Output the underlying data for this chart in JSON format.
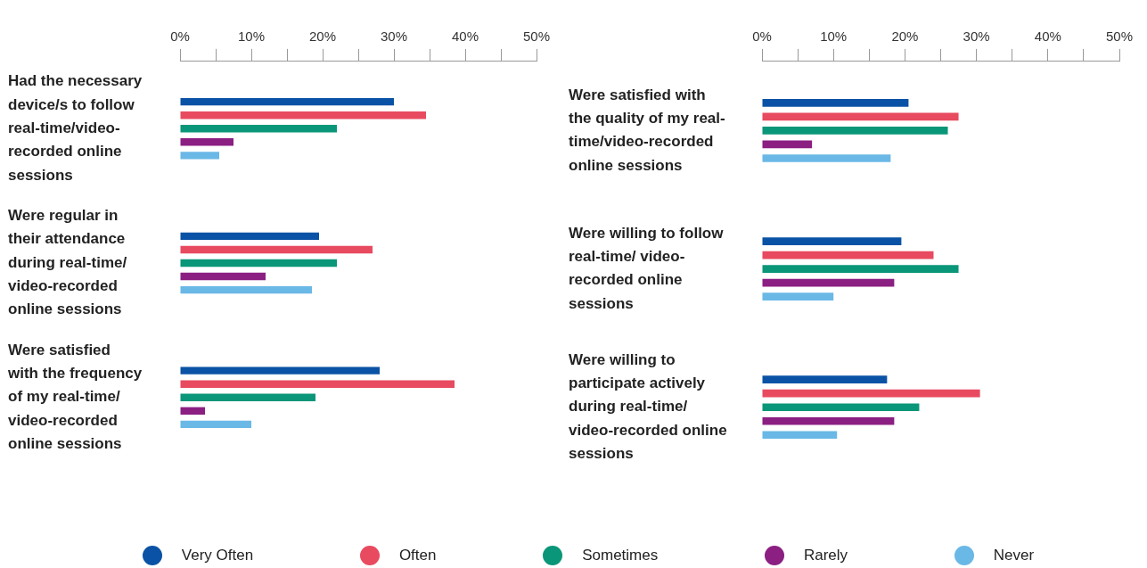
{
  "chart_data": [
    {
      "type": "bar",
      "orientation": "horizontal",
      "categories": [
        "Had the necessary device/s to follow real-time/video-recorded online sessions",
        "Were regular in their attendance during real-time/ video-recorded online sessions",
        "Were satisfied with the frequency of my real-time/ video-recorded online sessions"
      ],
      "series": [
        {
          "name": "Very Often",
          "color": "#0a52a5",
          "values": [
            30,
            19.5,
            28
          ]
        },
        {
          "name": "Often",
          "color": "#e84a5f",
          "values": [
            34.5,
            27,
            38.5
          ]
        },
        {
          "name": "Sometimes",
          "color": "#0a9678",
          "values": [
            22,
            22,
            19
          ]
        },
        {
          "name": "Rarely",
          "color": "#8b1f82",
          "values": [
            7.5,
            12,
            3.5
          ]
        },
        {
          "name": "Never",
          "color": "#6ab8e6",
          "values": [
            5.5,
            18.5,
            10
          ]
        }
      ],
      "xlim": [
        0,
        50
      ],
      "xticks": [
        {
          "value": 0,
          "label": "0%"
        },
        {
          "value": 5,
          "label": null
        },
        {
          "value": 10,
          "label": "10%"
        },
        {
          "value": 15,
          "label": null
        },
        {
          "value": 20,
          "label": "20%"
        },
        {
          "value": 25,
          "label": null
        },
        {
          "value": 30,
          "label": "30%"
        },
        {
          "value": 35,
          "label": null
        },
        {
          "value": 40,
          "label": "40%"
        },
        {
          "value": 45,
          "label": null
        },
        {
          "value": 50,
          "label": "50%"
        }
      ],
      "grid": false,
      "legend": "bottom"
    },
    {
      "type": "bar",
      "orientation": "horizontal",
      "categories": [
        "Were satisfied with the quality of my real-time/video-recorded online sessions",
        "Were willing to follow real-time/ video-recorded online sessions",
        "Were willing to participate actively during real-time/ video-recorded online sessions"
      ],
      "series": [
        {
          "color": "#0a52a5",
          "values": [
            20.5,
            19.5,
            17.5
          ]
        },
        {
          "color": "#e84a5f",
          "values": [
            27.5,
            24,
            30.5
          ]
        },
        {
          "color": "#0a9678",
          "values": [
            26,
            27.5,
            22
          ]
        },
        {
          "color": "#8b1f82",
          "values": [
            7,
            18.5,
            18.5
          ]
        },
        {
          "color": "#6ab8e6",
          "values": [
            18,
            10,
            10.5
          ]
        }
      ],
      "xlim": [
        0,
        50
      ],
      "xticks": [
        {
          "value": 0,
          "label": "0%"
        },
        {
          "value": 5,
          "label": null
        },
        {
          "value": 10,
          "label": "10%"
        },
        {
          "value": 15,
          "label": null
        },
        {
          "value": 20,
          "label": "20%"
        },
        {
          "value": 25,
          "label": null
        },
        {
          "value": 30,
          "label": "30%"
        },
        {
          "value": 35,
          "label": null
        },
        {
          "value": 40,
          "label": "40%"
        },
        {
          "value": 45,
          "label": null
        },
        {
          "value": 50,
          "label": "50%"
        }
      ],
      "grid": false
    }
  ]
}
